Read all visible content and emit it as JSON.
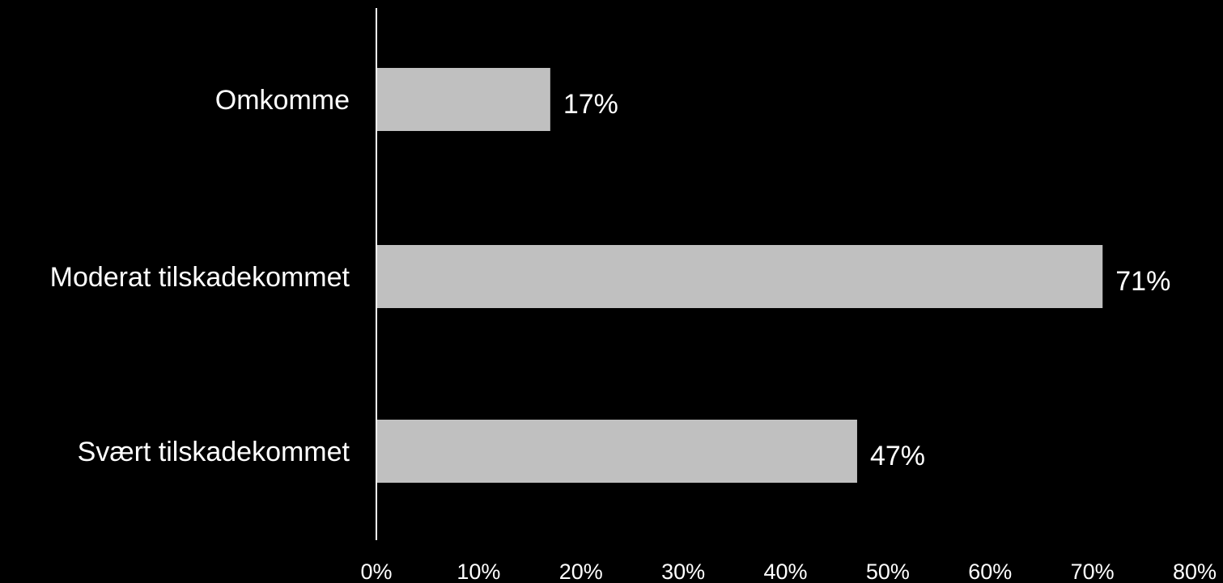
{
  "chart_data": {
    "type": "bar",
    "orientation": "horizontal",
    "categories": [
      "Omkomme",
      "Moderat tilskadekommet",
      "Svært tilskadekommet"
    ],
    "values": [
      17,
      71,
      47
    ],
    "value_labels": [
      "17%",
      "71%",
      "47%"
    ],
    "xlim": [
      0,
      80
    ],
    "x_ticks": [
      0,
      10,
      20,
      30,
      40,
      50,
      60,
      70,
      80
    ],
    "x_tick_labels": [
      "0%",
      "10%",
      "20%",
      "30%",
      "40%",
      "50%",
      "60%",
      "70%",
      "80%"
    ],
    "grid": false,
    "legend": "none",
    "colors": {
      "background": "#000000",
      "bar": "#c0c0c0",
      "axis": "#ffffff",
      "text": "#ffffff"
    }
  }
}
